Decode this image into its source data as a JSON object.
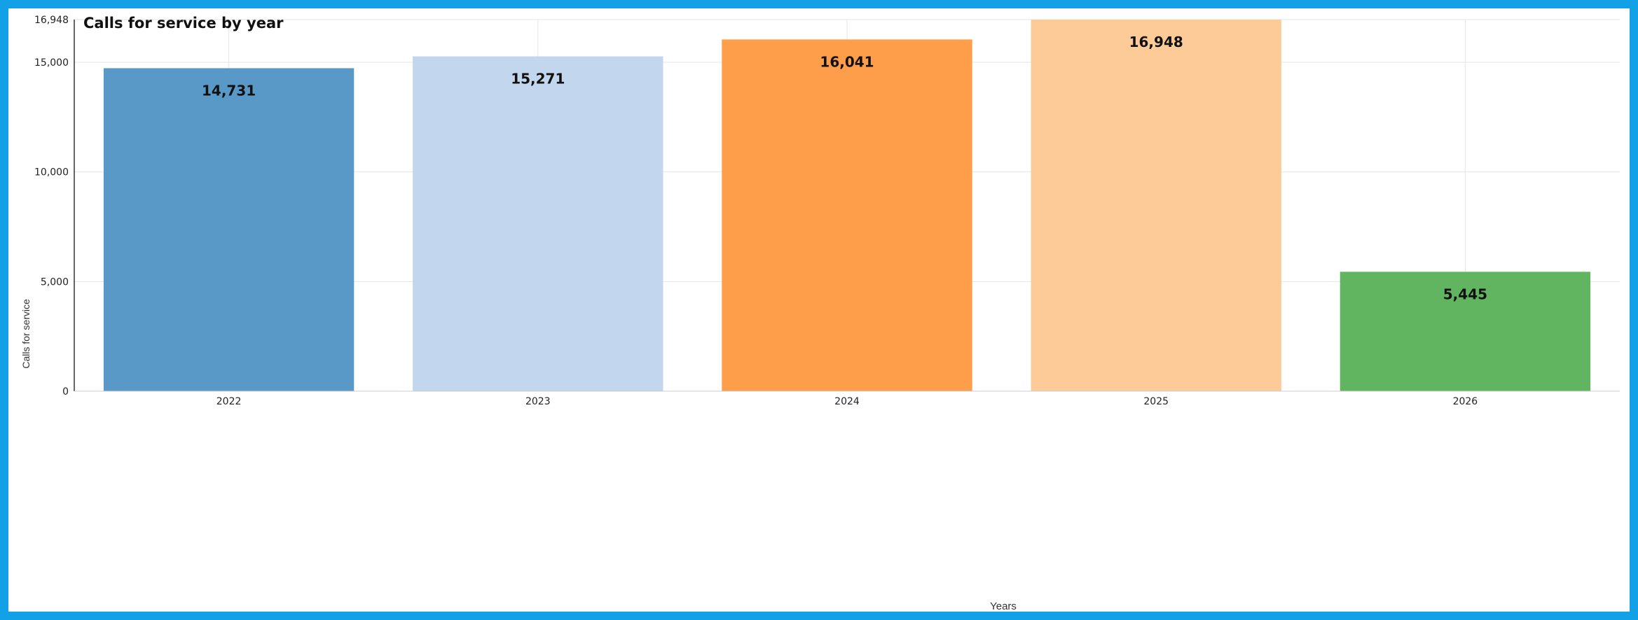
{
  "chart_data": {
    "type": "bar",
    "title": "Calls for service by year",
    "xlabel": "Years",
    "ylabel": "Calls for service",
    "categories": [
      "2022",
      "2023",
      "2024",
      "2025",
      "2026"
    ],
    "values": [
      14731,
      15271,
      16041,
      16948,
      5445
    ],
    "value_labels": [
      "14,731",
      "15,271",
      "16,041",
      "16,948",
      "5,445"
    ],
    "colors": [
      "#5899c8",
      "#c2d6ee",
      "#fe9d4a",
      "#fdcb98",
      "#61b561"
    ],
    "ylim": [
      0,
      16948
    ],
    "yticks": [
      0,
      5000,
      10000,
      15000,
      16948
    ],
    "ytick_labels": [
      "0",
      "5,000",
      "10,000",
      "15,000",
      "16,948"
    ],
    "grid": true,
    "legend": "none"
  },
  "frame": {
    "border_color": "#12a0e6"
  }
}
